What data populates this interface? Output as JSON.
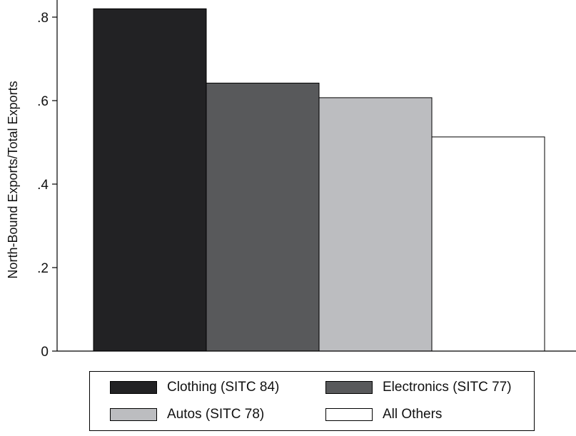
{
  "chart_data": {
    "type": "bar",
    "title": "",
    "xlabel": "",
    "ylabel": "North-Bound Exports/Total Exports",
    "ylim": [
      0,
      0.8
    ],
    "yticks": [
      0,
      0.2,
      0.4,
      0.6,
      0.8
    ],
    "ytick_labels": [
      "0",
      ".2",
      ".4",
      ".6",
      ".8"
    ],
    "grid": false,
    "legend_position": "bottom",
    "series": [
      {
        "name": "Clothing (SITC 84)",
        "value": 0.82,
        "color": "#222224"
      },
      {
        "name": "Electronics (SITC 77)",
        "value": 0.642,
        "color": "#58595b"
      },
      {
        "name": "Autos (SITC 78)",
        "value": 0.607,
        "color": "#bcbdc0"
      },
      {
        "name": "All Others",
        "value": 0.513,
        "color": "#ffffff"
      }
    ]
  }
}
